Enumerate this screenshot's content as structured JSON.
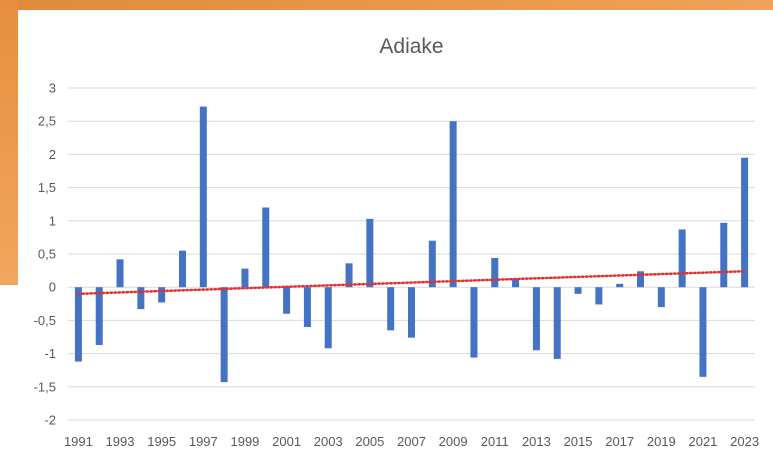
{
  "chart_data": {
    "type": "bar",
    "title": "Adiake",
    "xlabel": "",
    "ylabel": "",
    "ylim": [
      -2,
      3
    ],
    "yticks": [
      3,
      2.5,
      2,
      1.5,
      1,
      0.5,
      0,
      -0.5,
      -1,
      -1.5,
      -2
    ],
    "ytick_labels": [
      "3",
      "2,5",
      "2",
      "1,5",
      "1",
      "0,5",
      "0",
      "-0,5",
      "-1",
      "-1,5",
      "-2"
    ],
    "grid": true,
    "legend": "none",
    "categories": [
      1991,
      1992,
      1993,
      1994,
      1995,
      1996,
      1997,
      1998,
      1999,
      2000,
      2001,
      2002,
      2003,
      2004,
      2005,
      2006,
      2007,
      2008,
      2009,
      2010,
      2011,
      2012,
      2013,
      2014,
      2015,
      2016,
      2017,
      2018,
      2019,
      2020,
      2021,
      2022,
      2023
    ],
    "xtick_labels": [
      "1991",
      "1993",
      "1995",
      "1997",
      "1999",
      "2001",
      "2003",
      "2005",
      "2007",
      "2009",
      "2011",
      "2013",
      "2015",
      "2017",
      "2019",
      "2021",
      "2023"
    ],
    "values": [
      -1.12,
      -0.87,
      0.42,
      -0.33,
      -0.23,
      0.55,
      2.72,
      -1.43,
      0.28,
      1.2,
      -0.4,
      -0.6,
      -0.92,
      0.36,
      1.03,
      -0.65,
      -0.76,
      0.7,
      2.5,
      -1.06,
      0.44,
      0.12,
      -0.95,
      -1.08,
      -0.1,
      -0.26,
      0.05,
      0.24,
      -0.3,
      0.87,
      -1.35,
      0.97,
      1.95
    ],
    "trendline": {
      "type": "linear",
      "start": -0.1,
      "end": 0.24,
      "style": "dotted"
    },
    "colors": {
      "bar": "#4472c4",
      "trend": "#e03030",
      "grid": "#d9d9d9",
      "text": "#595959"
    }
  }
}
